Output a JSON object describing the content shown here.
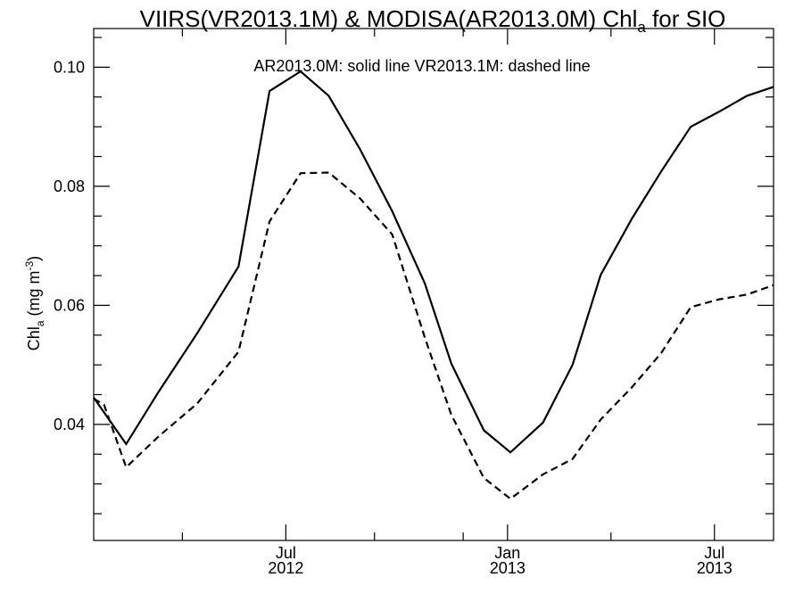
{
  "chart_data": {
    "type": "line",
    "title_prefix": "VIIRS(VR2013.1M) & MODISA(AR2013.0M)  Chl",
    "title_sub": "a",
    "title_suffix": " for SIO",
    "annotation": "AR2013.0M: solid line   VR2013.1M: dashed line",
    "ylabel": {
      "prefix": "Chl",
      "sub": "a",
      "mid": " (mg m",
      "sup": "-3",
      "suffix": ")"
    },
    "xlabel": "",
    "ylim": [
      0.0205,
      0.1065
    ],
    "y_ticks": [
      {
        "value": 0.04,
        "label": "0.04"
      },
      {
        "value": 0.06,
        "label": "0.06"
      },
      {
        "value": 0.08,
        "label": "0.08"
      },
      {
        "value": 0.1,
        "label": "0.10"
      }
    ],
    "y_minor_ticks": [
      0.025,
      0.03,
      0.035,
      0.045,
      0.05,
      0.055,
      0.065,
      0.07,
      0.075,
      0.085,
      0.09,
      0.095,
      0.105
    ],
    "x_range_months": [
      0.0,
      23.0
    ],
    "x_major_ticks": [
      {
        "month": 6.5,
        "month_label": "Jul",
        "year_label": "2012"
      },
      {
        "month": 14.0,
        "month_label": "Jan",
        "year_label": "2013"
      },
      {
        "month": 21.0,
        "month_label": "Jul",
        "year_label": "2013"
      }
    ],
    "x_minor_ticks": [
      3.0,
      9.5,
      12.5,
      17.5
    ],
    "grid": false,
    "series": [
      {
        "name": "AR2013.0M",
        "style": "solid",
        "color": "#000000",
        "x": [
          0.0,
          1.1,
          2.2,
          3.5,
          4.9,
          5.95,
          7.0,
          7.95,
          9.0,
          10.1,
          11.2,
          12.1,
          13.2,
          14.1,
          15.2,
          16.2,
          17.15,
          18.2,
          19.2,
          20.2,
          21.15,
          22.1,
          23.0
        ],
        "values": [
          0.0445,
          0.0367,
          0.0455,
          0.0553,
          0.0665,
          0.096,
          0.0993,
          0.0952,
          0.0863,
          0.0758,
          0.0637,
          0.0502,
          0.039,
          0.0353,
          0.0403,
          0.05,
          0.0651,
          0.0745,
          0.0825,
          0.09,
          0.0925,
          0.0952,
          0.0967
        ]
      },
      {
        "name": "VR2013.1M",
        "style": "dashed",
        "color": "#000000",
        "x": [
          0.0,
          0.35,
          1.1,
          2.2,
          3.5,
          4.9,
          5.95,
          7.0,
          7.95,
          9.0,
          10.1,
          11.2,
          12.1,
          13.2,
          14.1,
          15.2,
          16.2,
          17.15,
          18.2,
          19.2,
          20.2,
          21.15,
          22.1,
          23.0
        ],
        "values": [
          0.0443,
          0.0433,
          0.0328,
          0.038,
          0.0435,
          0.0522,
          0.0741,
          0.0822,
          0.0823,
          0.078,
          0.0719,
          0.0546,
          0.0416,
          0.031,
          0.0275,
          0.0316,
          0.0342,
          0.0408,
          0.0462,
          0.052,
          0.0597,
          0.061,
          0.0618,
          0.0634
        ]
      }
    ]
  }
}
